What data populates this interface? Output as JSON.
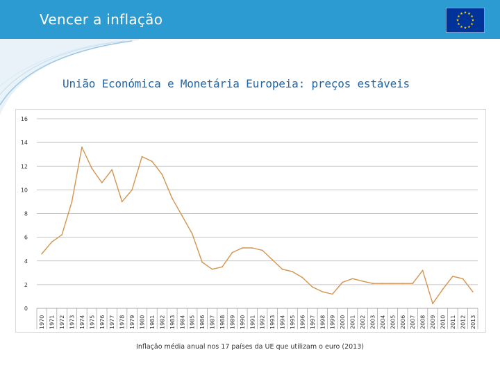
{
  "header": {
    "title": "Vencer a inflação"
  },
  "flag": {
    "color_bg": "#003399",
    "color_stars": "#ffcc00",
    "star_count": 12
  },
  "subtitle": "União Económica e Monetária Europeia: preços estáveis",
  "caption": "Inflação média anual nos 17 países da UE que utilizam o euro (2013)",
  "colors": {
    "header": "#2b9bd2",
    "line": "#d2954f",
    "subtitle": "#1f66a8",
    "grid": "#b0b0b0"
  },
  "chart_data": {
    "type": "line",
    "title": "",
    "xlabel": "",
    "ylabel": "",
    "ylim": [
      0,
      16
    ],
    "yticks": [
      0,
      2,
      4,
      6,
      8,
      10,
      12,
      14,
      16
    ],
    "grid": true,
    "x": [
      "1970",
      "1971",
      "1972",
      "1973",
      "1974",
      "1975",
      "1976",
      "1977",
      "1978",
      "1979",
      "1980",
      "1981",
      "1982",
      "1983",
      "1984",
      "1985",
      "1986",
      "1987",
      "1988",
      "1989",
      "1990",
      "1991",
      "1992",
      "1993",
      "1994",
      "1995",
      "1996",
      "1997",
      "1998",
      "1999",
      "2000",
      "2001",
      "2002",
      "2003",
      "2004",
      "2005",
      "2006",
      "2007",
      "2008",
      "2009",
      "2010",
      "2011",
      "2012",
      "2013"
    ],
    "series": [
      {
        "name": "Inflação",
        "values": [
          4.6,
          5.6,
          6.2,
          9.0,
          13.6,
          11.8,
          10.6,
          11.7,
          9.0,
          10.0,
          12.8,
          12.4,
          11.3,
          9.3,
          7.8,
          6.3,
          3.9,
          3.3,
          3.5,
          4.7,
          5.1,
          5.1,
          4.9,
          4.1,
          3.3,
          3.1,
          2.6,
          1.8,
          1.4,
          1.2,
          2.2,
          2.5,
          2.3,
          2.1,
          2.1,
          2.1,
          2.1,
          2.1,
          3.2,
          0.4,
          1.6,
          2.7,
          2.5,
          1.4
        ]
      }
    ]
  }
}
